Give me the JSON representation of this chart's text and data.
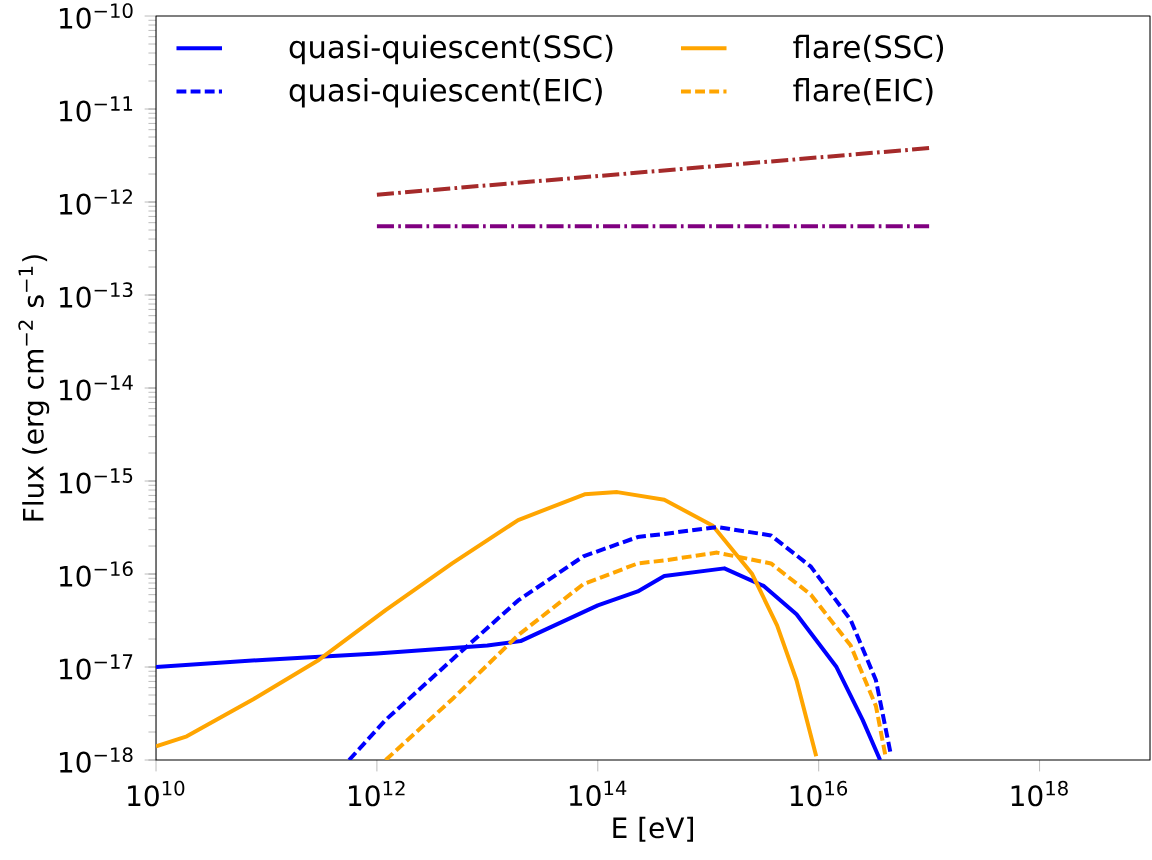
{
  "chart_data": {
    "type": "line",
    "xlabel": "E [eV]",
    "ylabel": "Flux (erg cm$^{−2}$ s$^{−1}$)",
    "log": "xy",
    "legend": "top left",
    "xlim": [
      10000000000.0,
      1e+19
    ],
    "ylim": [
      1e-18,
      1e-10
    ],
    "xticks": [
      {
        "value": 10000000000.0,
        "label": "10$^{10}$"
      },
      {
        "value": 1000000000000.0,
        "label": "10$^{12}$"
      },
      {
        "value": 100000000000000.0,
        "label": "10$^{14}$"
      },
      {
        "value": 1e+16,
        "label": "10$^{16}$"
      },
      {
        "value": 1e+18,
        "label": "10$^{18}$"
      }
    ],
    "yticks": [
      {
        "value": 1e-18,
        "label": "10$^{−18}$"
      },
      {
        "value": 1e-17,
        "label": "10$^{−17}$"
      },
      {
        "value": 1e-16,
        "label": "10$^{−16}$"
      },
      {
        "value": 1e-15,
        "label": "10$^{−15}$"
      },
      {
        "value": 1e-14,
        "label": "10$^{−14}$"
      },
      {
        "value": 1e-13,
        "label": "10$^{−13}$"
      },
      {
        "value": 1e-12,
        "label": "10$^{−12}$"
      },
      {
        "value": 1e-11,
        "label": "10$^{−11}$"
      },
      {
        "value": 1e-10,
        "label": "10$^{−10}$"
      }
    ],
    "series": [
      {
        "name": "quasi-quiescent(SSC)",
        "color": "#0000ff",
        "line_style": "solid",
        "x": [
          10000000000.0,
          100000000000.0,
          1000000000000.0,
          10000000000000.0,
          20000000000000.0,
          100000000000000.0,
          230000000000000.0,
          400000000000000.0,
          1400000000000000.0,
          3200000000000000.0,
          6300000000000000.0,
          1.45e+16,
          2.5e+16,
          3.6e+16
        ],
        "values": [
          1e-17,
          1.2e-17,
          1.4e-17,
          1.7e-17,
          1.9e-17,
          4.6e-17,
          6.5e-17,
          9.5e-17,
          1.15e-16,
          7.4e-17,
          3.7e-17,
          1e-17,
          2.7e-18,
          1e-18
        ]
      },
      {
        "name": "flare(SSC)",
        "color": "#ffa500",
        "line_style": "solid",
        "x": [
          10000000000.0,
          19000000000.0,
          76000000000.0,
          300000000000.0,
          1200000000000.0,
          4800000000000.0,
          19000000000000.0,
          76000000000000.0,
          150000000000000.0,
          400000000000000.0,
          1100000000000000.0,
          2500000000000000.0,
          4200000000000000.0,
          6300000000000000.0,
          9500000000000000.0
        ],
        "values": [
          1.4e-18,
          1.8e-18,
          4.5e-18,
          1.2e-17,
          4.1e-17,
          1.3e-16,
          3.8e-16,
          7.2e-16,
          7.6e-16,
          6.3e-16,
          3.3e-16,
          1e-16,
          2.8e-17,
          7.2e-18,
          1.1e-18
        ]
      },
      {
        "name": "quasi-quiescent(EIC)",
        "color": "#0000ff",
        "line_style": "dashed",
        "x": [
          560000000000.0,
          1200000000000.0,
          4800000000000.0,
          19000000000000.0,
          74000000000000.0,
          230000000000000.0,
          400000000000000.0,
          1200000000000000.0,
          3700000000000000.0,
          8500000000000000.0,
          1.95e+16,
          3.3e+16,
          4.5e+16
        ],
        "values": [
          1e-18,
          2.7e-18,
          1.2e-17,
          5.2e-17,
          1.55e-16,
          2.5e-16,
          2.7e-16,
          3.2e-16,
          2.6e-16,
          1.2e-16,
          3.2e-17,
          7.2e-18,
          1.15e-18
        ]
      },
      {
        "name": "flare(EIC)",
        "color": "#ffa500",
        "line_style": "dashed",
        "x": [
          1200000000000.0,
          4800000000000.0,
          19000000000000.0,
          74000000000000.0,
          230000000000000.0,
          400000000000000.0,
          1200000000000000.0,
          3700000000000000.0,
          8500000000000000.0,
          1.95e+16,
          3.3e+16,
          4e+16
        ],
        "values": [
          1e-18,
          4.5e-18,
          2.2e-17,
          7.8e-17,
          1.3e-16,
          1.4e-16,
          1.7e-16,
          1.3e-16,
          6e-17,
          1.7e-17,
          3.8e-18,
          1.15e-18
        ]
      },
      {
        "color": "#a52a2a",
        "line_style": "dashdot",
        "x": [
          1000000000000.0,
          1e+17
        ],
        "values": [
          1.2e-12,
          3.8e-12
        ]
      },
      {
        "color": "#800080",
        "line_style": "dashdot",
        "x": [
          1000000000000.0,
          1e+17
        ],
        "values": [
          5.5e-13,
          5.5e-13
        ]
      }
    ]
  }
}
